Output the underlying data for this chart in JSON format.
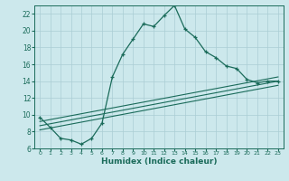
{
  "xlabel": "Humidex (Indice chaleur)",
  "bg_color": "#cce8ec",
  "grid_color": "#aacdd4",
  "line_color": "#1a6b5a",
  "xlim": [
    -0.5,
    23.5
  ],
  "ylim": [
    6,
    23
  ],
  "xticks": [
    0,
    1,
    2,
    3,
    4,
    5,
    6,
    7,
    8,
    9,
    10,
    11,
    12,
    13,
    14,
    15,
    16,
    17,
    18,
    19,
    20,
    21,
    22,
    23
  ],
  "yticks": [
    6,
    8,
    10,
    12,
    14,
    16,
    18,
    20,
    22
  ],
  "main_x": [
    0,
    1,
    2,
    3,
    4,
    5,
    6,
    7,
    8,
    9,
    10,
    11,
    12,
    13,
    14,
    15,
    16,
    17,
    18,
    19,
    20,
    21,
    22,
    23
  ],
  "main_y": [
    9.7,
    8.5,
    7.2,
    7.0,
    6.5,
    7.2,
    9.0,
    14.5,
    17.2,
    19.0,
    20.8,
    20.5,
    21.8,
    23.0,
    20.2,
    19.2,
    17.5,
    16.8,
    15.8,
    15.5,
    14.2,
    13.8,
    14.0,
    14.0
  ],
  "line1_x": [
    0,
    23
  ],
  "line1_y": [
    8.2,
    13.5
  ],
  "line2_x": [
    0,
    23
  ],
  "line2_y": [
    8.7,
    14.0
  ],
  "line3_x": [
    0,
    23
  ],
  "line3_y": [
    9.2,
    14.5
  ]
}
